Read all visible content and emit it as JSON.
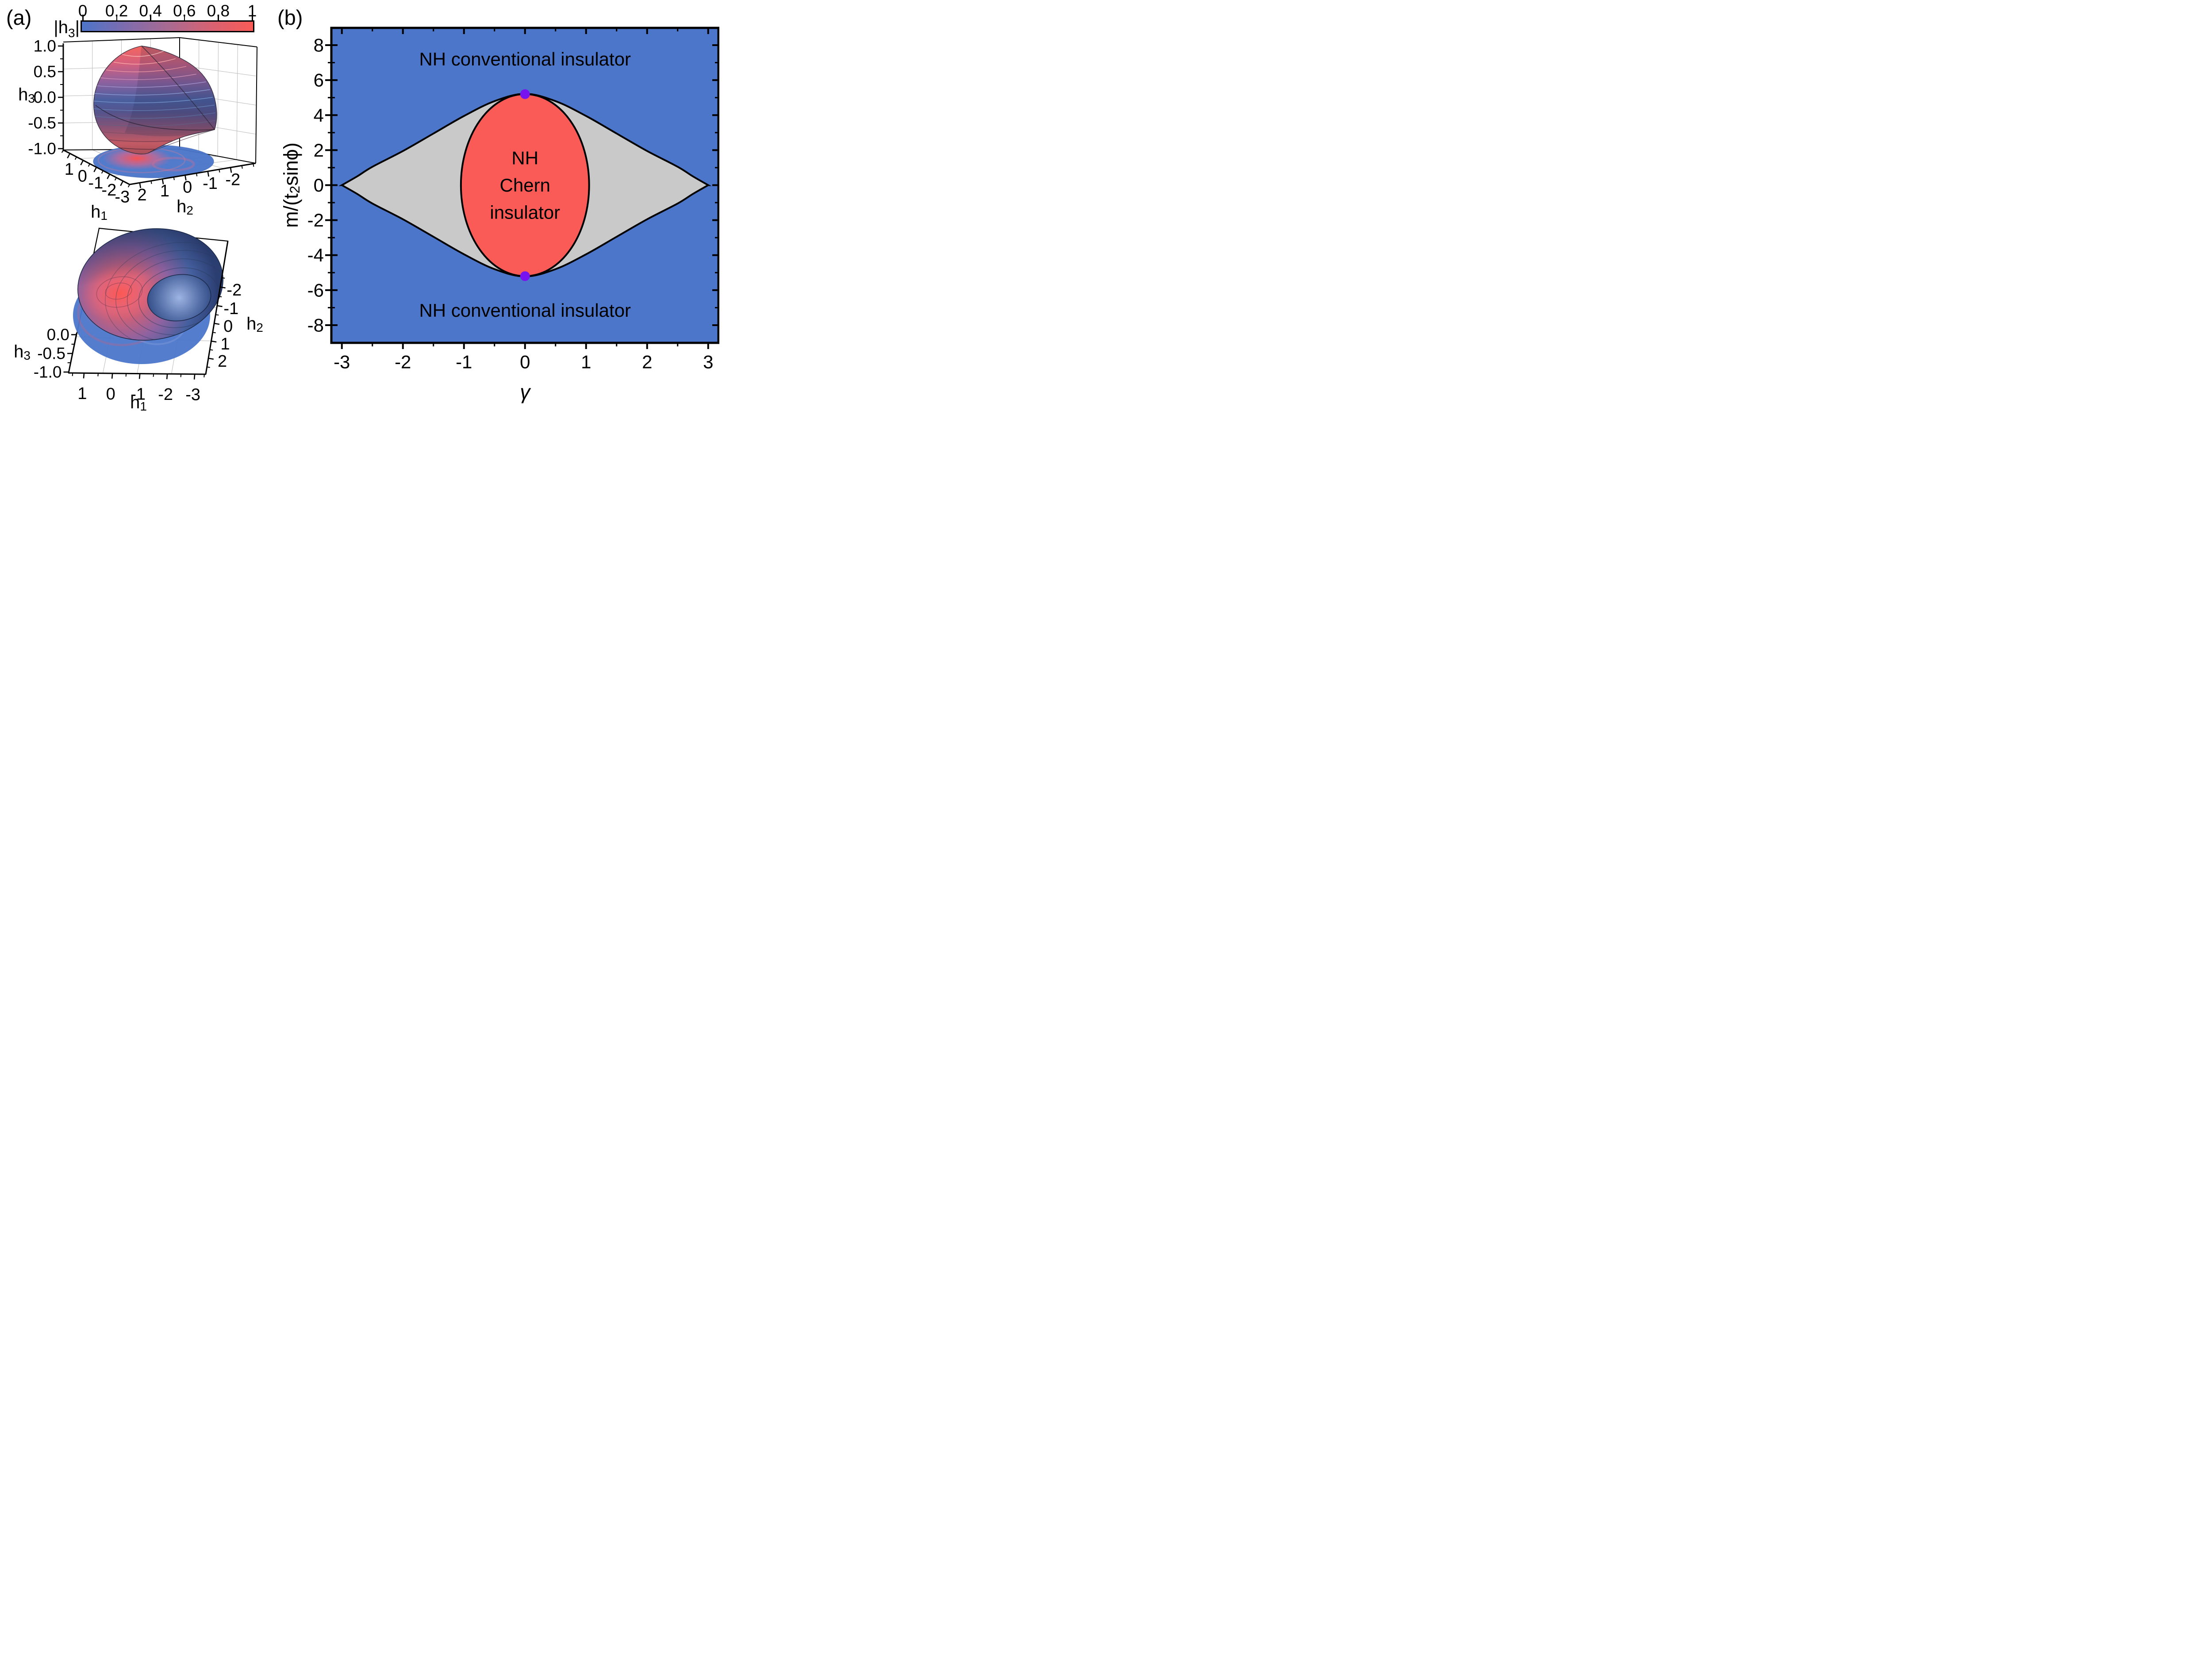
{
  "panels": {
    "a": {
      "label": "(a)",
      "colorbar": {
        "label": {
          "pre": "|h",
          "sub": "3",
          "post": "|"
        },
        "ticks": [
          "0",
          "0.2",
          "0.4",
          "0.6",
          "0.8",
          "1"
        ],
        "colormap": {
          "low": "#4d74c9",
          "mid": "#a86a92",
          "high": "#fa5b56"
        }
      },
      "plot_top": {
        "z_axis": {
          "label": {
            "base": "h",
            "sub": "3"
          },
          "ticks": [
            "1.0",
            "0.5",
            "0.0",
            "-0.5",
            "-1.0"
          ]
        },
        "x_axis": {
          "label": {
            "base": "h",
            "sub": "1"
          },
          "ticks": [
            "1",
            "0",
            "-1",
            "-2",
            "-3"
          ]
        },
        "y_axis": {
          "label": {
            "base": "h",
            "sub": "2"
          },
          "ticks": [
            "2",
            "1",
            "0",
            "-1",
            "-2"
          ]
        }
      },
      "plot_bottom": {
        "z_axis": {
          "label": {
            "base": "h",
            "sub": "3"
          },
          "ticks": [
            "0.0",
            "-0.5",
            "-1.0"
          ]
        },
        "x_axis": {
          "label": {
            "base": "h",
            "sub": "1"
          },
          "ticks": [
            "1",
            "0",
            "-1",
            "-2",
            "-3"
          ]
        },
        "y_axis": {
          "label": {
            "base": "h",
            "sub": "2"
          },
          "ticks": [
            "-2",
            "-1",
            "0",
            "1",
            "2"
          ]
        }
      }
    },
    "b": {
      "label": "(b)",
      "chart_data": {
        "type": "area",
        "xlabel": "γ",
        "ylabel_parts": {
          "pre": "m/(t",
          "sub": "2",
          "post": "sinϕ)"
        },
        "xlim": [
          -3.17,
          3.17
        ],
        "ylim": [
          -9,
          9
        ],
        "xticks": [
          -3,
          -2,
          -1,
          0,
          1,
          2,
          3
        ],
        "x_minor_ticks": [
          -2.5,
          -1.5,
          -0.5,
          0.5,
          1.5,
          2.5
        ],
        "yticks": [
          8,
          6,
          4,
          2,
          0,
          -2,
          -4,
          -6,
          -8
        ],
        "y_minor_ticks": [
          7,
          5,
          3,
          1,
          -1,
          -3,
          -5,
          -7
        ],
        "regions": {
          "conventional": {
            "color": "#4b76ca"
          },
          "exceptional": {
            "color": "#c9c9c9",
            "upper_boundary": [
              [
                -3,
                0
              ],
              [
                -2.75,
                0.5
              ],
              [
                -2.5,
                1.05
              ],
              [
                -2,
                1.95
              ],
              [
                -1.5,
                2.95
              ],
              [
                -1,
                3.95
              ],
              [
                -0.5,
                4.8
              ],
              [
                0,
                5.22
              ],
              [
                0.5,
                4.8
              ],
              [
                1,
                3.95
              ],
              [
                1.5,
                2.95
              ],
              [
                2,
                1.95
              ],
              [
                2.5,
                1.05
              ],
              [
                2.75,
                0.5
              ],
              [
                3,
                0
              ]
            ]
          },
          "chern": {
            "color": "#fa5b57",
            "ellipse": {
              "cx": 0,
              "cy": 0,
              "rx": 1.05,
              "ry": 5.2
            }
          }
        },
        "gap_closing_points": [
          [
            0,
            5.2
          ],
          [
            0,
            -5.2
          ]
        ],
        "point_color": "#7713ef",
        "annotations": [
          {
            "lines": [
              "NH conventional insulator"
            ],
            "x": 0,
            "y": 7.2
          },
          {
            "lines": [
              "NH",
              "Chern",
              "insulator"
            ],
            "x": 0,
            "y": 0,
            "line_step": 1.55
          },
          {
            "lines": [
              "NH conventional insulator"
            ],
            "x": 0,
            "y": -7.15
          }
        ]
      }
    }
  }
}
